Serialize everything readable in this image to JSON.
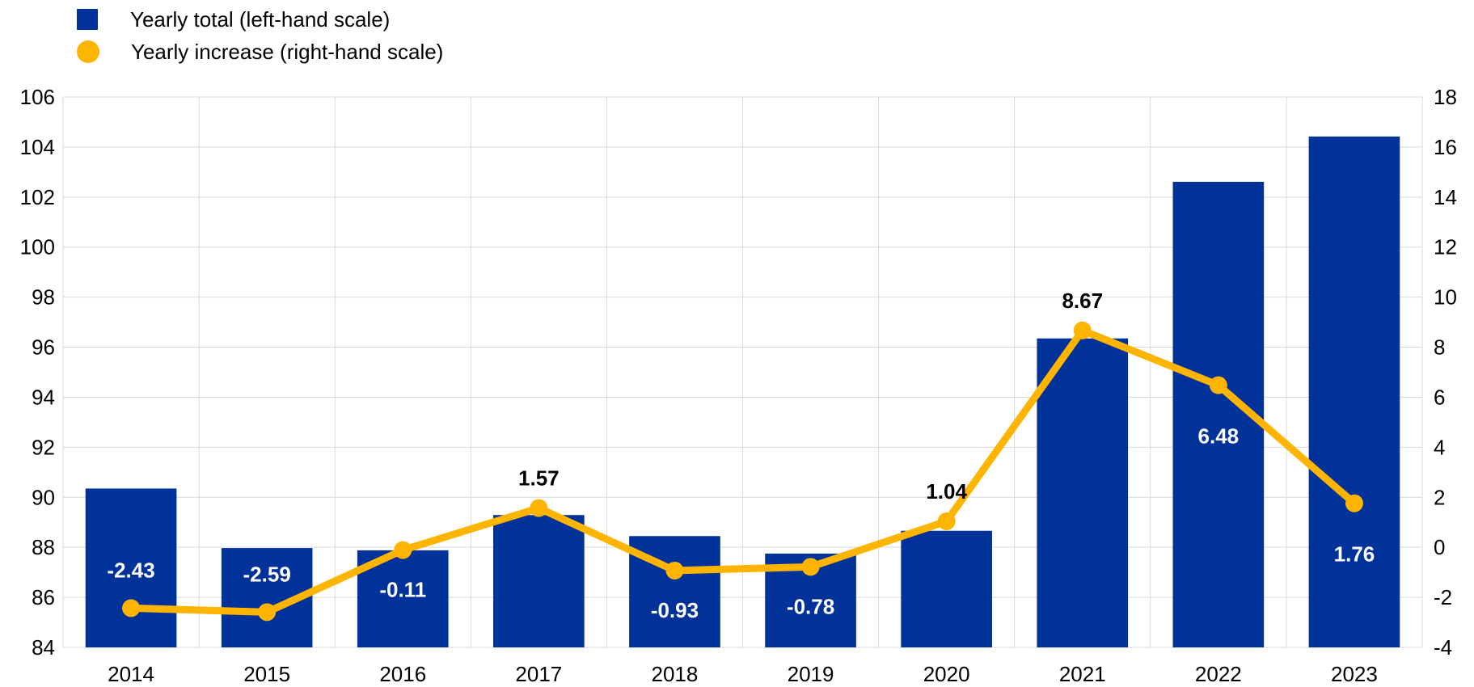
{
  "legend": {
    "total_label": "Yearly total (left-hand scale)",
    "increase_label": "Yearly increase (right-hand scale)"
  },
  "colors": {
    "bars": "#003299",
    "line": "#FFB400",
    "grid": "#D9D9D9",
    "label_on_bar": "#FFFFFF",
    "label_above": "#000000"
  },
  "chart_data": {
    "type": "bar",
    "categories": [
      "2014",
      "2015",
      "2016",
      "2017",
      "2018",
      "2019",
      "2020",
      "2021",
      "2022",
      "2023"
    ],
    "series": [
      {
        "name": "Yearly total (left-hand scale)",
        "type": "bar",
        "axis": "left",
        "values": [
          90.35,
          87.97,
          87.88,
          89.29,
          88.45,
          87.75,
          88.66,
          96.35,
          102.61,
          104.42
        ]
      },
      {
        "name": "Yearly increase (right-hand scale)",
        "type": "line",
        "axis": "right",
        "values": [
          -2.43,
          -2.59,
          -0.11,
          1.57,
          -0.93,
          -0.78,
          1.04,
          8.67,
          6.48,
          1.76
        ],
        "data_labels": [
          "-2.43",
          "-2.59",
          "-0.11",
          "1.57",
          "-0.93",
          "-0.78",
          "1.04",
          "8.67",
          "6.48",
          "1.76"
        ]
      }
    ],
    "left_axis": {
      "ylim": [
        84,
        106
      ],
      "ticks": [
        "84",
        "86",
        "88",
        "90",
        "92",
        "94",
        "96",
        "98",
        "100",
        "102",
        "104",
        "106"
      ]
    },
    "right_axis": {
      "ylim": [
        -4,
        18
      ],
      "ticks": [
        "-4",
        "-2",
        "0",
        "2",
        "4",
        "6",
        "8",
        "10",
        "12",
        "14",
        "16",
        "18"
      ]
    },
    "grid": true,
    "legend_position": "top-left"
  }
}
